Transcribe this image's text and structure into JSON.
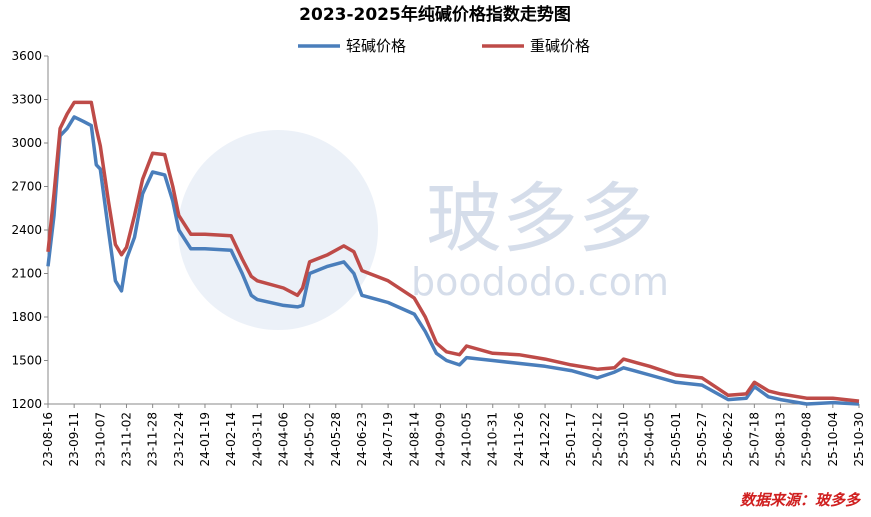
{
  "chart_data": {
    "type": "line",
    "title": "2023-2025年纯碱价格指数走势图",
    "source": "数据来源：玻多多",
    "watermark": "玻多多",
    "watermark_url": "boododo.com",
    "x": [
      "23-08-16",
      "23-08-22",
      "23-08-28",
      "23-09-04",
      "23-09-11",
      "23-09-20",
      "23-09-28",
      "23-10-03",
      "23-10-07",
      "23-10-15",
      "23-10-22",
      "23-10-28",
      "23-11-02",
      "23-11-10",
      "23-11-18",
      "23-11-28",
      "23-12-10",
      "23-12-18",
      "23-12-24",
      "24-01-05",
      "24-01-19",
      "24-02-14",
      "24-02-25",
      "24-03-05",
      "24-03-11",
      "24-04-06",
      "24-04-20",
      "24-04-25",
      "24-05-02",
      "24-05-20",
      "24-06-05",
      "24-06-15",
      "24-06-23",
      "24-07-19",
      "24-08-14",
      "24-08-25",
      "24-09-05",
      "24-09-15",
      "24-09-28",
      "24-10-05",
      "24-10-31",
      "24-11-26",
      "24-12-22",
      "25-01-17",
      "25-02-12",
      "25-03-01",
      "25-03-10",
      "25-04-05",
      "25-05-01",
      "25-05-27",
      "25-06-22",
      "25-07-10",
      "25-07-18",
      "25-08-01",
      "25-08-13",
      "25-09-08",
      "25-10-04",
      "25-10-30"
    ],
    "series": [
      {
        "name": "轻碱价格",
        "color": "#4a7ebb",
        "values": [
          2150,
          2500,
          3050,
          3100,
          3180,
          3150,
          3120,
          2850,
          2820,
          2400,
          2050,
          1980,
          2200,
          2350,
          2650,
          2800,
          2780,
          2600,
          2400,
          2270,
          2270,
          2260,
          2100,
          1950,
          1920,
          1880,
          1870,
          1880,
          2100,
          2150,
          2180,
          2100,
          1950,
          1900,
          1820,
          1700,
          1550,
          1500,
          1470,
          1520,
          1500,
          1480,
          1460,
          1430,
          1380,
          1420,
          1450,
          1400,
          1350,
          1330,
          1230,
          1240,
          1320,
          1250,
          1230,
          1200,
          1210,
          1200
        ]
      },
      {
        "name": "重碱价格",
        "color": "#be4b48",
        "values": [
          2250,
          2650,
          3100,
          3200,
          3280,
          3280,
          3280,
          3100,
          2980,
          2600,
          2300,
          2230,
          2280,
          2500,
          2750,
          2930,
          2920,
          2700,
          2500,
          2370,
          2370,
          2360,
          2200,
          2080,
          2050,
          2000,
          1950,
          2000,
          2180,
          2230,
          2290,
          2250,
          2120,
          2050,
          1930,
          1800,
          1620,
          1560,
          1540,
          1600,
          1550,
          1540,
          1510,
          1470,
          1440,
          1450,
          1510,
          1460,
          1400,
          1380,
          1260,
          1270,
          1350,
          1290,
          1270,
          1240,
          1240,
          1220
        ]
      }
    ],
    "xlim": [
      "23-08-16",
      "25-10-30"
    ],
    "xticks": [
      "23-08-16",
      "23-09-11",
      "23-10-07",
      "23-11-02",
      "23-11-28",
      "23-12-24",
      "24-01-19",
      "24-02-14",
      "24-03-11",
      "24-04-06",
      "24-05-02",
      "24-05-28",
      "24-06-23",
      "24-07-19",
      "24-08-14",
      "24-09-09",
      "24-10-05",
      "24-10-31",
      "24-11-26",
      "24-12-22",
      "25-01-17",
      "25-02-12",
      "25-03-10",
      "25-04-05",
      "25-05-01",
      "25-05-27",
      "25-06-22",
      "25-07-18",
      "25-08-13",
      "25-09-08",
      "25-10-04",
      "25-10-30"
    ],
    "ylim": [
      1200,
      3600
    ],
    "yticks": [
      1200,
      1500,
      1800,
      2100,
      2400,
      2700,
      3000,
      3300,
      3600
    ],
    "grid": false
  }
}
